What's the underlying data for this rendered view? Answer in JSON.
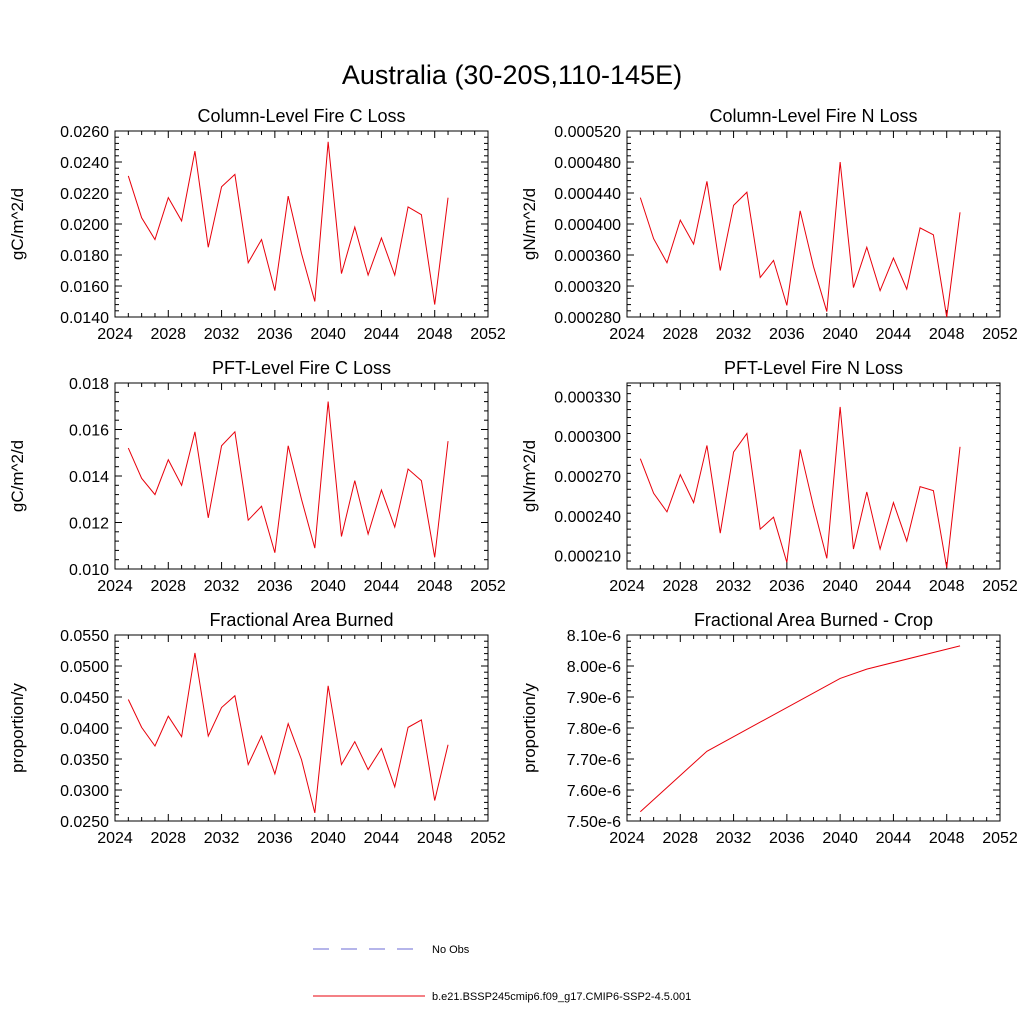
{
  "figure_title": "Australia (30-20S,110-145E)",
  "legend": {
    "items": [
      {
        "label": "No Obs",
        "color": "#6b6bd6",
        "dashed": true
      },
      {
        "label": "b.e21.BSSP245cmip6.f09_g17.CMIP6-SSP2-4.5.001",
        "color": "#e8000b",
        "dashed": false
      }
    ]
  },
  "chart_data": [
    {
      "type": "line",
      "title": "Column-Level Fire C Loss",
      "xlabel": "",
      "ylabel": "gC/m^2/d",
      "xlim": [
        2024,
        2052
      ],
      "ylim": [
        0.014,
        0.026
      ],
      "x_ticks": [
        2024,
        2028,
        2032,
        2036,
        2040,
        2044,
        2048,
        2052
      ],
      "y_ticks": [
        0.014,
        0.016,
        0.018,
        0.02,
        0.022,
        0.024,
        0.026
      ],
      "y_tick_labels": [
        "0.0140",
        "0.0160",
        "0.0180",
        "0.0200",
        "0.0220",
        "0.0240",
        "0.0260"
      ],
      "series": [
        {
          "name": "b.e21.BSSP245cmip6.f09_g17.CMIP6-SSP2-4.5.001",
          "color": "#e8000b",
          "x": [
            2025,
            2026,
            2027,
            2028,
            2029,
            2030,
            2031,
            2032,
            2033,
            2034,
            2035,
            2036,
            2037,
            2038,
            2039,
            2040,
            2041,
            2042,
            2043,
            2044,
            2045,
            2046,
            2047,
            2048,
            2049
          ],
          "y": [
            0.0231,
            0.0204,
            0.019,
            0.0217,
            0.0202,
            0.0247,
            0.0185,
            0.0224,
            0.0232,
            0.0175,
            0.019,
            0.0157,
            0.0218,
            0.0181,
            0.015,
            0.0253,
            0.0168,
            0.0198,
            0.0167,
            0.0191,
            0.0167,
            0.0211,
            0.0206,
            0.0148,
            0.0217
          ]
        }
      ]
    },
    {
      "type": "line",
      "title": "Column-Level Fire N Loss",
      "xlabel": "",
      "ylabel": "gN/m^2/d",
      "xlim": [
        2024,
        2052
      ],
      "ylim": [
        0.00028,
        0.00052
      ],
      "x_ticks": [
        2024,
        2028,
        2032,
        2036,
        2040,
        2044,
        2048,
        2052
      ],
      "y_ticks": [
        0.00028,
        0.00032,
        0.00036,
        0.0004,
        0.00044,
        0.00048,
        0.00052
      ],
      "y_tick_labels": [
        "0.000280",
        "0.000320",
        "0.000360",
        "0.000400",
        "0.000440",
        "0.000480",
        "0.000520"
      ],
      "series": [
        {
          "name": "b.e21.BSSP245cmip6.f09_g17.CMIP6-SSP2-4.5.001",
          "color": "#e8000b",
          "x": [
            2025,
            2026,
            2027,
            2028,
            2029,
            2030,
            2031,
            2032,
            2033,
            2034,
            2035,
            2036,
            2037,
            2038,
            2039,
            2040,
            2041,
            2042,
            2043,
            2044,
            2045,
            2046,
            2047,
            2048,
            2049
          ],
          "y": [
            0.000434,
            0.000381,
            0.00035,
            0.000405,
            0.000374,
            0.000455,
            0.00034,
            0.000424,
            0.000441,
            0.000331,
            0.000353,
            0.000295,
            0.000417,
            0.000345,
            0.000287,
            0.00048,
            0.000318,
            0.00037,
            0.000314,
            0.000356,
            0.000316,
            0.000395,
            0.000386,
            0.00028,
            0.000415
          ]
        }
      ]
    },
    {
      "type": "line",
      "title": "PFT-Level Fire C Loss",
      "xlabel": "",
      "ylabel": "gC/m^2/d",
      "xlim": [
        2024,
        2052
      ],
      "ylim": [
        0.01,
        0.018
      ],
      "x_ticks": [
        2024,
        2028,
        2032,
        2036,
        2040,
        2044,
        2048,
        2052
      ],
      "y_ticks": [
        0.01,
        0.012,
        0.014,
        0.016,
        0.018
      ],
      "y_tick_labels": [
        "0.010",
        "0.012",
        "0.014",
        "0.016",
        "0.018"
      ],
      "series": [
        {
          "name": "b.e21.BSSP245cmip6.f09_g17.CMIP6-SSP2-4.5.001",
          "color": "#e8000b",
          "x": [
            2025,
            2026,
            2027,
            2028,
            2029,
            2030,
            2031,
            2032,
            2033,
            2034,
            2035,
            2036,
            2037,
            2038,
            2039,
            2040,
            2041,
            2042,
            2043,
            2044,
            2045,
            2046,
            2047,
            2048,
            2049
          ],
          "y": [
            0.0152,
            0.0139,
            0.0132,
            0.0147,
            0.0136,
            0.0159,
            0.0122,
            0.0153,
            0.0159,
            0.0121,
            0.0127,
            0.0107,
            0.0153,
            0.013,
            0.0109,
            0.0172,
            0.0114,
            0.0138,
            0.0115,
            0.0134,
            0.0118,
            0.0143,
            0.0138,
            0.0105,
            0.0155
          ]
        }
      ]
    },
    {
      "type": "line",
      "title": "PFT-Level Fire N Loss",
      "xlabel": "",
      "ylabel": "gN/m^2/d",
      "xlim": [
        2024,
        2052
      ],
      "ylim": [
        0.0002,
        0.00034
      ],
      "x_ticks": [
        2024,
        2028,
        2032,
        2036,
        2040,
        2044,
        2048,
        2052
      ],
      "y_ticks": [
        0.00021,
        0.00024,
        0.00027,
        0.0003,
        0.00033
      ],
      "y_tick_labels": [
        "0.000210",
        "0.000240",
        "0.000270",
        "0.000300",
        "0.000330"
      ],
      "series": [
        {
          "name": "b.e21.BSSP245cmip6.f09_g17.CMIP6-SSP2-4.5.001",
          "color": "#e8000b",
          "x": [
            2025,
            2026,
            2027,
            2028,
            2029,
            2030,
            2031,
            2032,
            2033,
            2034,
            2035,
            2036,
            2037,
            2038,
            2039,
            2040,
            2041,
            2042,
            2043,
            2044,
            2045,
            2046,
            2047,
            2048,
            2049
          ],
          "y": [
            0.000283,
            0.000257,
            0.000243,
            0.000271,
            0.00025,
            0.000293,
            0.000227,
            0.000288,
            0.000302,
            0.00023,
            0.000239,
            0.000205,
            0.00029,
            0.000247,
            0.000208,
            0.000322,
            0.000215,
            0.000258,
            0.000215,
            0.00025,
            0.000221,
            0.000262,
            0.000259,
            0.000201,
            0.000292
          ]
        }
      ]
    },
    {
      "type": "line",
      "title": "Fractional Area Burned",
      "xlabel": "",
      "ylabel": "proportion/y",
      "xlim": [
        2024,
        2052
      ],
      "ylim": [
        0.025,
        0.055
      ],
      "x_ticks": [
        2024,
        2028,
        2032,
        2036,
        2040,
        2044,
        2048,
        2052
      ],
      "y_ticks": [
        0.025,
        0.03,
        0.035,
        0.04,
        0.045,
        0.05,
        0.055
      ],
      "y_tick_labels": [
        "0.0250",
        "0.0300",
        "0.0350",
        "0.0400",
        "0.0450",
        "0.0500",
        "0.0550"
      ],
      "series": [
        {
          "name": "b.e21.BSSP245cmip6.f09_g17.CMIP6-SSP2-4.5.001",
          "color": "#e8000b",
          "x": [
            2025,
            2026,
            2027,
            2028,
            2029,
            2030,
            2031,
            2032,
            2033,
            2034,
            2035,
            2036,
            2037,
            2038,
            2039,
            2040,
            2041,
            2042,
            2043,
            2044,
            2045,
            2046,
            2047,
            2048,
            2049
          ],
          "y": [
            0.0446,
            0.0401,
            0.0371,
            0.0419,
            0.0386,
            0.0521,
            0.0387,
            0.0433,
            0.0452,
            0.0341,
            0.0387,
            0.0326,
            0.0407,
            0.0349,
            0.0263,
            0.0468,
            0.0341,
            0.0378,
            0.0333,
            0.0367,
            0.0305,
            0.0401,
            0.0413,
            0.0283,
            0.0373
          ]
        }
      ]
    },
    {
      "type": "line",
      "title": "Fractional Area Burned - Crop",
      "xlabel": "",
      "ylabel": "proportion/y",
      "xlim": [
        2024,
        2052
      ],
      "ylim": [
        7.5e-06,
        8.1e-06
      ],
      "x_ticks": [
        2024,
        2028,
        2032,
        2036,
        2040,
        2044,
        2048,
        2052
      ],
      "y_ticks": [
        7.5e-06,
        7.6e-06,
        7.7e-06,
        7.8e-06,
        7.9e-06,
        8e-06,
        8.1e-06
      ],
      "y_tick_labels": [
        "7.50e-6",
        "7.60e-6",
        "7.70e-6",
        "7.80e-6",
        "7.90e-6",
        "8.00e-6",
        "8.10e-6"
      ],
      "series": [
        {
          "name": "b.e21.BSSP245cmip6.f09_g17.CMIP6-SSP2-4.5.001",
          "color": "#e8000b",
          "x": [
            2025,
            2030,
            2040,
            2042,
            2049
          ],
          "y": [
            7.53e-06,
            7.725e-06,
            7.96e-06,
            7.99e-06,
            8.065e-06
          ]
        }
      ]
    }
  ]
}
